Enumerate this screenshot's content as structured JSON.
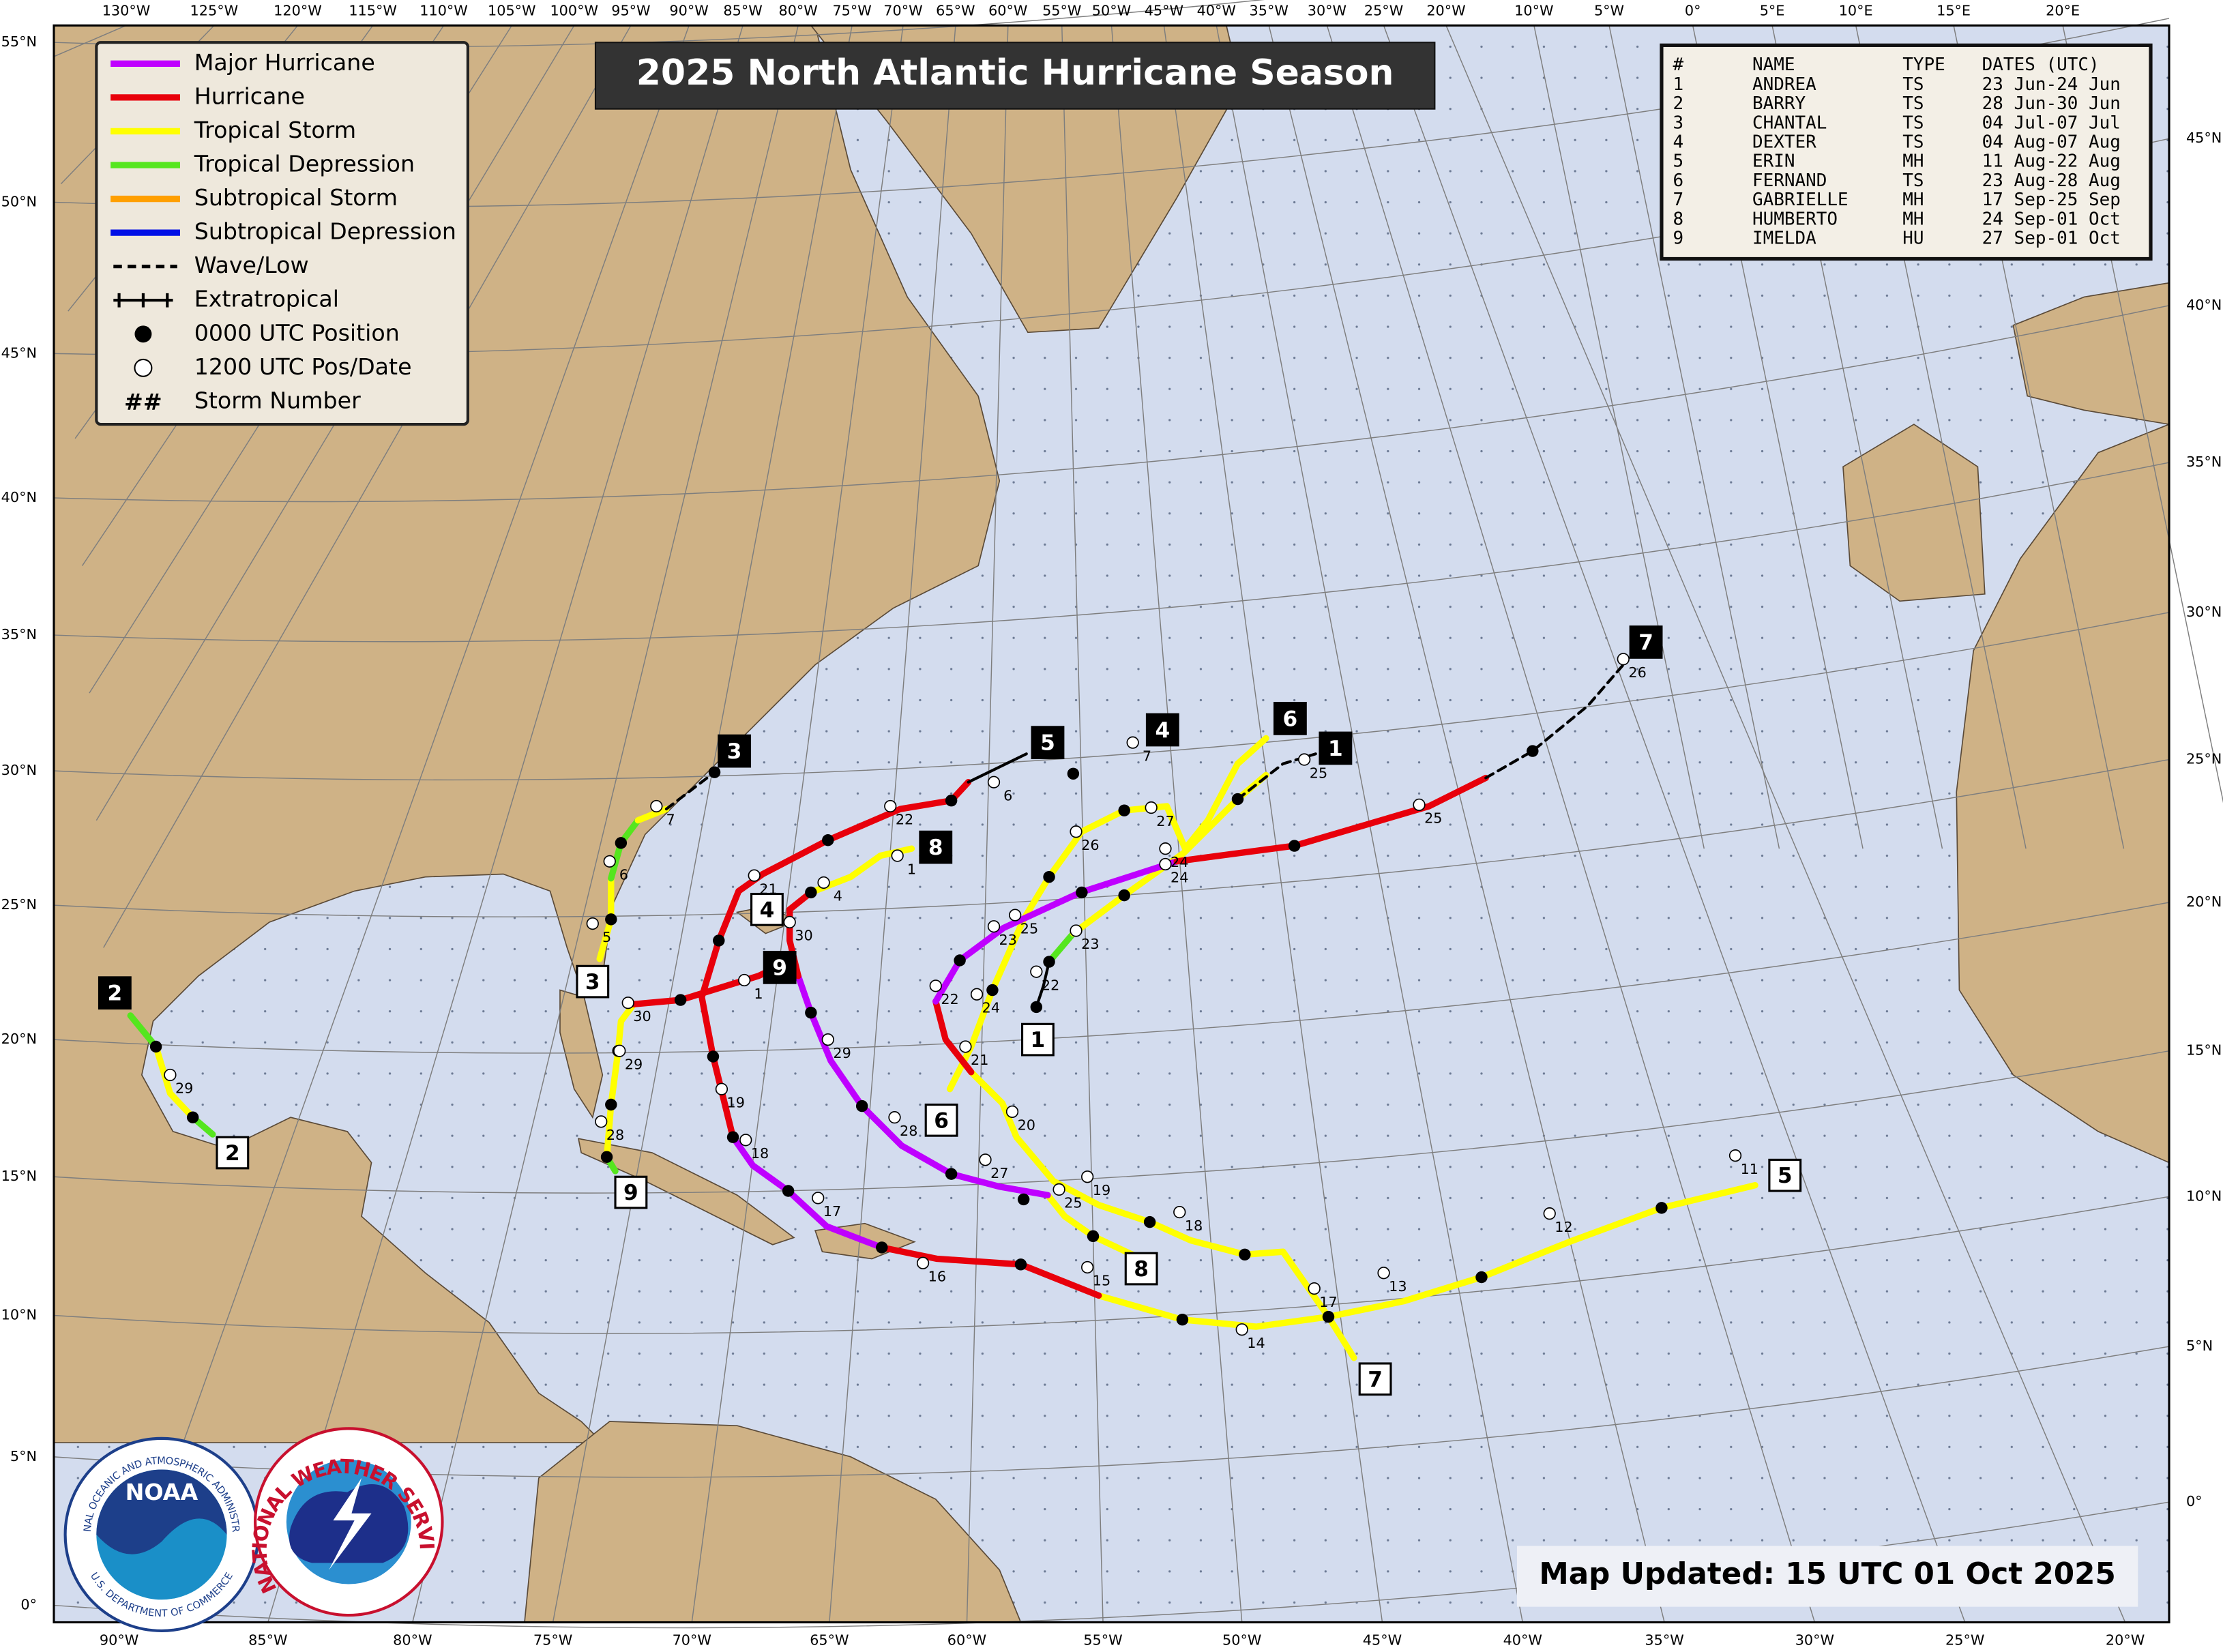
{
  "title": "2025 North Atlantic Hurricane Season",
  "legend": {
    "items": [
      "Major Hurricane",
      "Hurricane",
      "Tropical Storm",
      "Tropical Depression",
      "Subtropical Storm",
      "Subtropical Depression",
      "Wave/Low",
      "Extratropical",
      "0000 UTC Position",
      "1200 UTC Pos/Date",
      "Storm Number"
    ],
    "storm_number_symbol": "##"
  },
  "table": {
    "header": [
      "#",
      "NAME",
      "TYPE",
      "DATES (UTC)"
    ],
    "rows": [
      [
        "1",
        "ANDREA",
        "TS",
        "23 Jun-24 Jun"
      ],
      [
        "2",
        "BARRY",
        "TS",
        "28 Jun-30 Jun"
      ],
      [
        "3",
        "CHANTAL",
        "TS",
        "04 Jul-07 Jul"
      ],
      [
        "4",
        "DEXTER",
        "TS",
        "04 Aug-07 Aug"
      ],
      [
        "5",
        "ERIN",
        "MH",
        "11 Aug-22 Aug"
      ],
      [
        "6",
        "FERNAND",
        "TS",
        "23 Aug-28 Aug"
      ],
      [
        "7",
        "GABRIELLE",
        "MH",
        "17 Sep-25 Sep"
      ],
      [
        "8",
        "HUMBERTO",
        "MH",
        "24 Sep-01 Oct"
      ],
      [
        "9",
        "IMELDA",
        "HU",
        "27 Sep-01 Oct"
      ]
    ]
  },
  "updated": "Map Updated: 15 UTC 01 Oct 2025",
  "logos": {
    "noaa": "NOAA",
    "noaa_ring_top": "NATIONAL OCEANIC AND ATMOSPHERIC ADMINISTRATION",
    "noaa_ring_bottom": "U.S. DEPARTMENT OF COMMERCE",
    "nws_ring": "NATIONAL WEATHER SERVICE"
  },
  "map": {
    "top_lon_labels": [
      "130°W",
      "125°W",
      "120°W",
      "115°W",
      "110°W",
      "105°W",
      "100°W",
      "95°W",
      "90°W",
      "85°W",
      "80°W",
      "75°W",
      "70°W",
      "65°W",
      "60°W",
      "55°W",
      "50°W",
      "45°W",
      "40°W",
      "35°W",
      "30°W",
      "25°W",
      "20°W",
      "10°W",
      "5°W",
      "0°",
      "5°E",
      "10°E",
      "15°E",
      "20°E"
    ],
    "bottom_lon_labels": [
      "90°W",
      "85°W",
      "80°W",
      "75°W",
      "70°W",
      "65°W",
      "60°W",
      "55°W",
      "50°W",
      "45°W",
      "40°W",
      "35°W",
      "30°W",
      "25°W",
      "20°W"
    ],
    "left_lat_labels": [
      "55°N",
      "50°N",
      "45°N",
      "40°N",
      "35°N",
      "30°N",
      "25°N",
      "20°N",
      "15°N",
      "10°N",
      "5°N",
      "0°"
    ],
    "right_lat_labels": [
      "45°N",
      "40°N",
      "35°N",
      "30°N",
      "25°N",
      "20°N",
      "15°N",
      "10°N",
      "5°N",
      "0°"
    ],
    "storm_numbers": [
      "1",
      "1",
      "2",
      "2",
      "3",
      "3",
      "4",
      "4",
      "5",
      "5",
      "6",
      "6",
      "7",
      "7",
      "8",
      "8",
      "9",
      "9"
    ],
    "date_labels": [
      "29",
      "7",
      "6",
      "5",
      "30",
      "29",
      "28",
      "4",
      "1",
      "22",
      "6",
      "7",
      "27",
      "26",
      "25",
      "25",
      "24",
      "23",
      "22",
      "25",
      "23",
      "22",
      "24",
      "21",
      "20",
      "19",
      "18",
      "17",
      "13",
      "14",
      "12",
      "11",
      "15",
      "16",
      "17",
      "18",
      "19",
      "21",
      "30",
      "1",
      "29",
      "28",
      "27",
      "25",
      "24",
      "26"
    ]
  }
}
